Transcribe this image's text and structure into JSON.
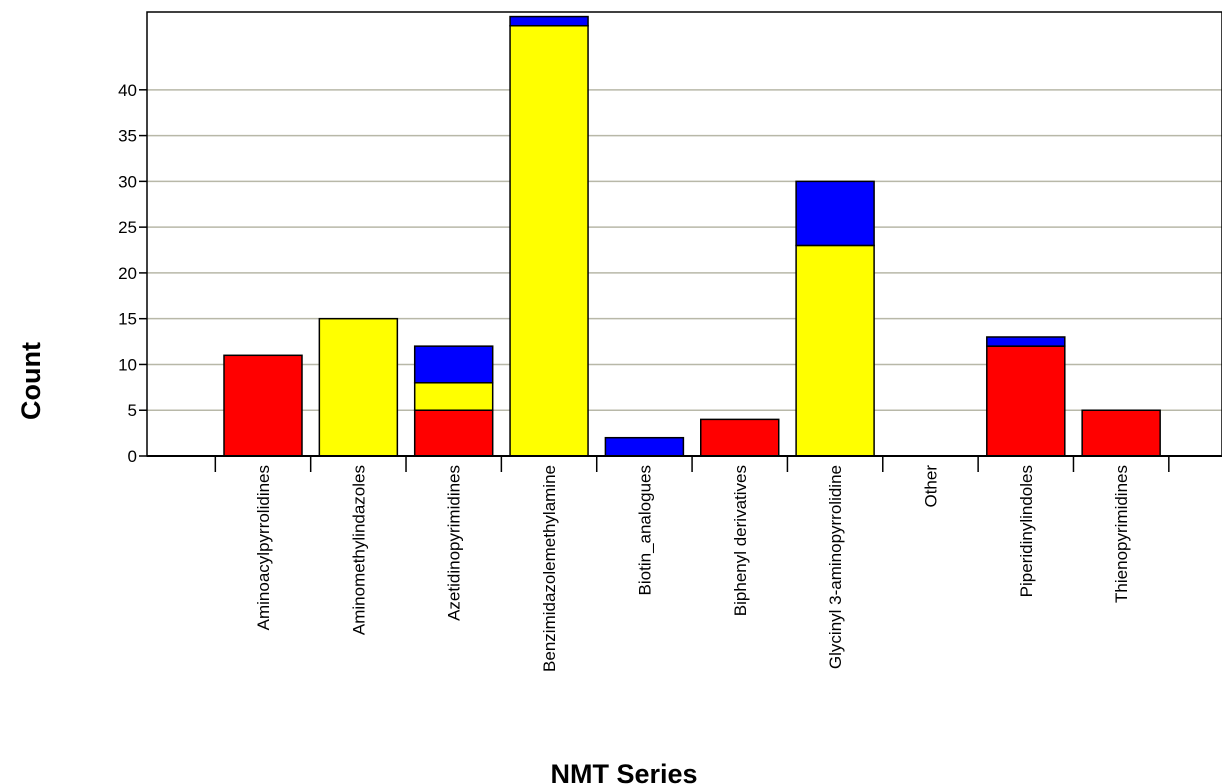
{
  "chart_data": {
    "type": "bar",
    "stacked": true,
    "xlabel": "NMT Series",
    "ylabel": "Count",
    "yticks": [
      0,
      5,
      10,
      15,
      20,
      25,
      30,
      35,
      40
    ],
    "ylim": [
      0,
      48.5
    ],
    "grid": true,
    "categories": [
      "Aminoacylpyrrolidines",
      "Aminomethylindazoles",
      "Azetidinopyrimidines",
      "Benzimidazolemethylamine",
      "Biotin_analogues",
      "Biphenyl derivatives",
      "Glycinyl 3-aminopyrrolidine",
      "Other",
      "Piperidinylindoles",
      "Thienopyrimidines"
    ],
    "series": [
      {
        "color": "#ff0000",
        "values": [
          11,
          0,
          5,
          0,
          0,
          4,
          0,
          0,
          12,
          5
        ]
      },
      {
        "color": "#ffff00",
        "values": [
          0,
          15,
          3,
          47,
          0,
          0,
          23,
          0,
          0,
          0
        ]
      },
      {
        "color": "#0000ff",
        "values": [
          0,
          0,
          4,
          1,
          2,
          0,
          7,
          0,
          1,
          0
        ]
      }
    ]
  }
}
